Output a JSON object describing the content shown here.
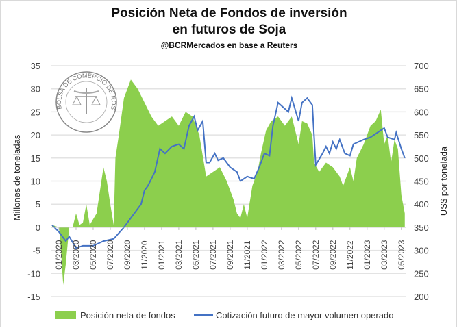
{
  "title": "Posición Neta de Fondos de inversión",
  "title2": "en futuros de Soja",
  "subtitle": "@BCRMercados  en base a Reuters",
  "logo_text": "BOLSA DE COMERCIO DE ROSARIO",
  "colors": {
    "area": "#8ccf4d",
    "line": "#4472c4",
    "grid": "#e3e3e3"
  },
  "chart_data": {
    "type": "area+line",
    "xlabel": "",
    "x_unit": "months since 01/2020",
    "xlim": [
      -0.96,
      40.5
    ],
    "x_ticks": [
      0,
      2,
      4,
      6,
      8,
      10,
      12,
      14,
      16,
      18,
      20,
      22,
      24,
      26,
      28,
      30,
      32,
      34,
      36,
      38,
      40
    ],
    "x_tick_labels": [
      "01/2020",
      "03/2020",
      "05/2020",
      "07/2020",
      "09/2020",
      "11/2020",
      "01/2021",
      "03/2021",
      "05/2021",
      "07/2021",
      "09/2021",
      "11/2021",
      "01/2022",
      "03/2022",
      "05/2022",
      "07/2022",
      "09/2022",
      "11/2022",
      "01/2023",
      "03/2023",
      "05/2023"
    ],
    "ylabel": "Millones de toneladas",
    "ylim": [
      -15,
      35
    ],
    "y_ticks": [
      -15,
      -10,
      -5,
      0,
      5,
      10,
      15,
      20,
      25,
      30,
      35
    ],
    "y2label": "US$ por tonelada",
    "y2lim": [
      200,
      700
    ],
    "y2_ticks": [
      200,
      250,
      300,
      350,
      400,
      450,
      500,
      550,
      600,
      650,
      700
    ],
    "grid": true,
    "legend_position": "bottom",
    "series": [
      {
        "name": "Posición neta de fondos",
        "type": "area",
        "axis": "left",
        "x": [
          -0.8,
          0,
          0.24,
          0.5,
          0.8,
          1.2,
          1.6,
          2,
          2.4,
          2.8,
          3.2,
          3.6,
          4.4,
          5.2,
          5.6,
          6,
          6.4,
          6.6,
          7,
          7.6,
          8.4,
          9.2,
          10,
          10.8,
          11.6,
          12.4,
          13.2,
          14,
          14.8,
          15.6,
          16.4,
          17.2,
          18,
          18.8,
          19.6,
          20.4,
          20.8,
          21.2,
          21.6,
          22,
          22.6,
          23.2,
          23.6,
          24.2,
          24.8,
          25.6,
          26.4,
          27.2,
          27.6,
          28,
          28.4,
          29,
          29.6,
          29.8,
          30.4,
          31.2,
          32,
          32.8,
          33.2,
          33.6,
          34,
          34.4,
          34.8,
          35.6,
          36.4,
          37,
          37.6,
          38,
          38.4,
          38.8,
          39.2,
          39.6,
          40,
          40.4
        ],
        "values": [
          0.5,
          0,
          -5,
          -12.5,
          -8,
          0,
          0,
          3,
          0.5,
          1,
          5,
          0.5,
          3,
          13,
          10,
          5,
          0.5,
          15,
          20,
          28,
          32,
          30,
          27,
          24,
          22,
          23,
          24,
          22,
          25,
          24,
          20,
          11,
          12,
          13,
          10,
          6,
          3,
          2,
          5,
          2,
          9,
          12,
          16,
          21,
          23,
          24,
          22,
          24,
          21,
          18,
          23,
          22.5,
          20,
          14,
          12,
          14,
          13,
          11,
          9,
          11,
          13,
          10,
          15,
          18,
          22,
          23,
          25.5,
          18,
          20,
          14,
          19,
          17,
          7,
          3
        ]
      },
      {
        "name": "Cotización futuro de mayor volumen operado",
        "type": "line",
        "axis": "right",
        "x": [
          -0.8,
          0,
          0.8,
          1.2,
          2,
          2.8,
          4,
          5.2,
          6.4,
          7.6,
          8.4,
          9.2,
          9.6,
          10,
          10.4,
          11.2,
          11.8,
          12.4,
          13.2,
          14,
          14.6,
          15.2,
          15.8,
          16.2,
          16.8,
          17.2,
          17.6,
          18.2,
          18.6,
          19.2,
          20,
          20.8,
          21.2,
          22,
          22.8,
          23.4,
          24,
          24.6,
          25,
          25.6,
          26.2,
          26.8,
          27.2,
          28,
          28.4,
          29,
          29.6,
          30,
          30.8,
          31.2,
          31.6,
          32,
          32.4,
          32.8,
          33.4,
          34,
          34.4,
          35,
          35.6,
          36.4,
          36.8,
          37.6,
          38,
          38.4,
          39.2,
          39.4,
          40,
          40.4
        ],
        "values": [
          355,
          340,
          320,
          330,
          305,
          310,
          310,
          320,
          325,
          350,
          370,
          390,
          400,
          430,
          440,
          470,
          520,
          510,
          525,
          530,
          520,
          570,
          590,
          560,
          580,
          490,
          490,
          510,
          495,
          500,
          480,
          470,
          450,
          460,
          455,
          480,
          510,
          505,
          570,
          620,
          610,
          600,
          630,
          580,
          620,
          630,
          615,
          485,
          510,
          525,
          510,
          535,
          520,
          540,
          510,
          505,
          530,
          535,
          540,
          545,
          550,
          560,
          565,
          545,
          540,
          555,
          520,
          500
        ]
      }
    ]
  }
}
